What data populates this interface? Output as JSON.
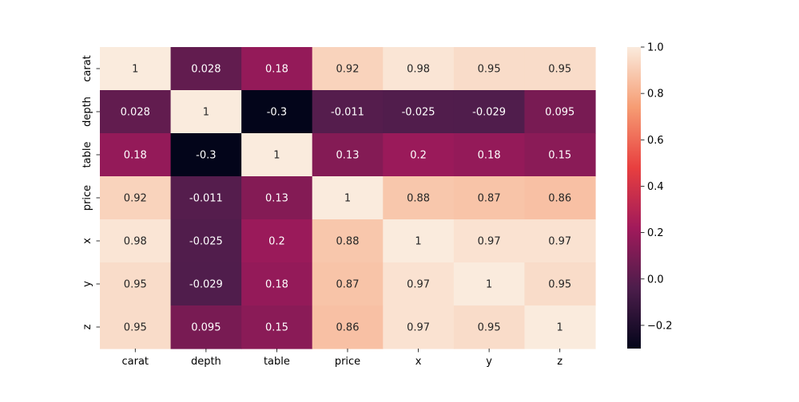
{
  "chart_data": {
    "type": "heatmap",
    "title": "",
    "xlabel": "",
    "ylabel": "",
    "x_categories": [
      "carat",
      "depth",
      "table",
      "price",
      "x",
      "y",
      "z"
    ],
    "y_categories": [
      "carat",
      "depth",
      "table",
      "price",
      "x",
      "y",
      "z"
    ],
    "values": [
      [
        1,
        0.028,
        0.18,
        0.92,
        0.98,
        0.95,
        0.95
      ],
      [
        0.028,
        1,
        -0.3,
        -0.011,
        -0.025,
        -0.029,
        0.095
      ],
      [
        0.18,
        -0.3,
        1,
        0.13,
        0.2,
        0.18,
        0.15
      ],
      [
        0.92,
        -0.011,
        0.13,
        1,
        0.88,
        0.87,
        0.86
      ],
      [
        0.98,
        -0.025,
        0.2,
        0.88,
        1,
        0.97,
        0.97
      ],
      [
        0.95,
        -0.029,
        0.18,
        0.87,
        0.97,
        1,
        0.95
      ],
      [
        0.95,
        0.095,
        0.15,
        0.86,
        0.97,
        0.95,
        1
      ]
    ],
    "annotations": [
      [
        "1",
        "0.028",
        "0.18",
        "0.92",
        "0.98",
        "0.95",
        "0.95"
      ],
      [
        "0.028",
        "1",
        "-0.3",
        "-0.011",
        "-0.025",
        "-0.029",
        "0.095"
      ],
      [
        "0.18",
        "-0.3",
        "1",
        "0.13",
        "0.2",
        "0.18",
        "0.15"
      ],
      [
        "0.92",
        "-0.011",
        "0.13",
        "1",
        "0.88",
        "0.87",
        "0.86"
      ],
      [
        "0.98",
        "-0.025",
        "0.2",
        "0.88",
        "1",
        "0.97",
        "0.97"
      ],
      [
        "0.95",
        "-0.029",
        "0.18",
        "0.87",
        "0.97",
        "1",
        "0.95"
      ],
      [
        "0.95",
        "0.095",
        "0.15",
        "0.86",
        "0.97",
        "0.95",
        "1"
      ]
    ],
    "colorbar": {
      "range": [
        -0.3,
        1
      ],
      "ticks": [
        -0.2,
        0,
        0.2,
        0.4,
        0.6,
        0.8,
        1
      ],
      "tick_labels": [
        "−0.2",
        "0.0",
        "0.2",
        "0.4",
        "0.6",
        "0.8",
        "1.0"
      ],
      "colormap": "rocket",
      "colormap_stops": [
        "#03051a",
        "#4c1d4b",
        "#a11a5b",
        "#e83f3f",
        "#f69c73",
        "#faebdd"
      ]
    },
    "grid": false,
    "legend": "colorbar-right"
  }
}
